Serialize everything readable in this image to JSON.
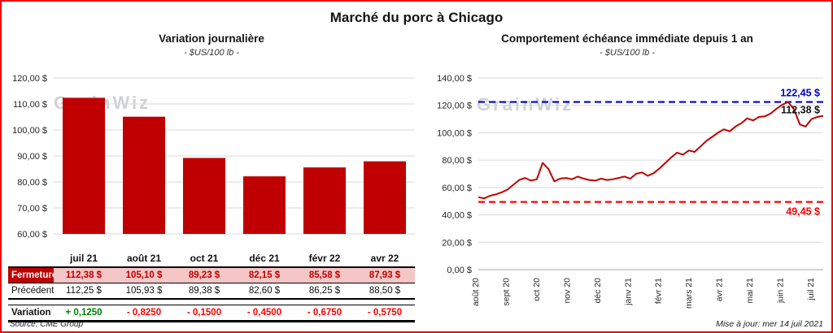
{
  "page": {
    "title": "Marché du porc à Chicago",
    "source_note": "Source: CME Group",
    "update_note": "Mise à jour: mer 14 juil 2021",
    "watermark": "GrainWiz"
  },
  "table": {
    "columns": [
      "juil 21",
      "août 21",
      "oct 21",
      "déc 21",
      "févr 22",
      "avr 22"
    ],
    "rows": [
      {
        "key": "fermeture",
        "label": "Fermeture",
        "values": [
          "112,38  $",
          "105,10  $",
          "89,23  $",
          "82,15  $",
          "85,58  $",
          "87,93  $"
        ]
      },
      {
        "key": "precedent",
        "label": "Précédent",
        "values": [
          "112,25  $",
          "105,93  $",
          "89,38  $",
          "82,60  $",
          "86,25  $",
          "88,50  $"
        ]
      },
      {
        "key": "variation",
        "label": "Variation",
        "values": [
          "+ 0,1250",
          "- 0,8250",
          "- 0,1500",
          "- 0,4500",
          "- 0,6750",
          "- 0,5750"
        ]
      }
    ]
  },
  "chart_data": [
    {
      "type": "bar",
      "title": "Variation  journalière",
      "subtitle": "- $US/100 lb -",
      "categories": [
        "juil 21",
        "août 21",
        "oct 21",
        "déc 21",
        "févr 22",
        "avr 22"
      ],
      "values": [
        112.38,
        105.1,
        89.23,
        82.15,
        85.58,
        87.93
      ],
      "ylim": [
        60,
        120
      ],
      "ytick_step": 10,
      "bar_color": "#C00000",
      "grid": true,
      "legend": "none"
    },
    {
      "type": "line",
      "title": "Comportement  échéance  immédiate  depuis 1 an",
      "subtitle": "- $US/100 lb -",
      "x_labels": [
        "août 20",
        "sept 20",
        "oct 20",
        "nov 20",
        "déc 20",
        "janv 21",
        "févr 21",
        "mars 21",
        "avr 21",
        "mai 21",
        "juin 21",
        "juil 21"
      ],
      "ylim": [
        0,
        140
      ],
      "ytick_step": 20,
      "line_color": "#C00000",
      "grid": true,
      "legend": "none",
      "high_line": {
        "value": 122.45,
        "label": "122,45 $",
        "color": "#0000CC"
      },
      "low_line": {
        "value": 49.45,
        "label": "49,45 $",
        "color": "#FF0000"
      },
      "last_value_label": "112,38 $",
      "values": [
        53,
        52,
        54,
        55,
        56.5,
        58.5,
        62,
        65.5,
        67,
        65,
        66,
        78,
        73.5,
        64.5,
        66.5,
        67,
        66,
        68,
        66.5,
        65.5,
        65,
        66.5,
        65.5,
        66,
        67,
        68,
        66.5,
        70,
        71,
        68.5,
        70.5,
        74,
        78,
        82,
        85.5,
        84,
        87,
        86,
        90,
        94,
        97,
        100,
        102.5,
        101,
        104.5,
        107,
        110.5,
        109,
        111.5,
        112,
        114,
        117.5,
        120.5,
        122.45,
        117,
        106,
        104.5,
        110,
        111.5,
        112.38
      ]
    }
  ]
}
